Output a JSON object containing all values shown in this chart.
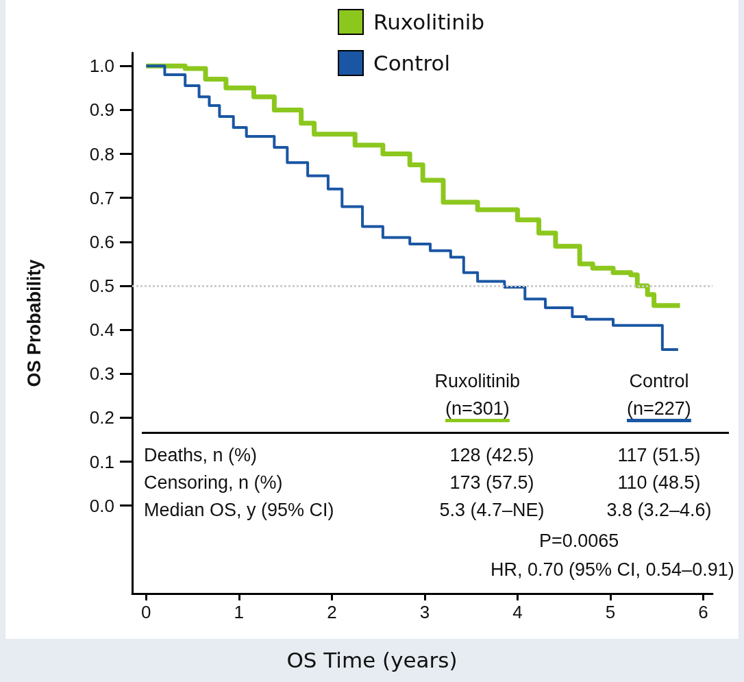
{
  "chart_data": {
    "type": "step",
    "xlabel": "OS Time (years)",
    "ylabel": "OS Probability",
    "xlim": [
      -0.15,
      6.1
    ],
    "xticks": [
      0,
      1,
      2,
      3,
      4,
      5,
      6
    ],
    "ylim": [
      -0.2,
      1.03
    ],
    "yticks": [
      {
        "value": 0,
        "label": "0.0"
      },
      0.1,
      0.2,
      0.3,
      0.4,
      0.5,
      0.6,
      0.7,
      0.8,
      0.9,
      {
        "value": 1,
        "label": "1.0"
      }
    ],
    "grid": false,
    "legend": "top",
    "marker": "none",
    "line_style": "solid",
    "series": [
      {
        "name": "Ruxolitinib",
        "color": "#8cc71e",
        "x": [
          0,
          0.42,
          0.64,
          0.86,
          1.16,
          1.38,
          1.67,
          1.81,
          2.25,
          2.55,
          2.84,
          2.98,
          3.2,
          3.57,
          4.0,
          4.23,
          4.41,
          4.67,
          4.81,
          5.03,
          5.22,
          5.29,
          5.4,
          5.47,
          5.75
        ],
        "values": [
          1.0,
          0.994,
          0.97,
          0.95,
          0.93,
          0.9,
          0.87,
          0.845,
          0.82,
          0.8,
          0.775,
          0.74,
          0.69,
          0.673,
          0.65,
          0.62,
          0.59,
          0.55,
          0.54,
          0.53,
          0.525,
          0.5,
          0.48,
          0.455,
          0.455
        ]
      },
      {
        "name": "Control",
        "color": "#1a56a3",
        "x": [
          0,
          0.2,
          0.42,
          0.57,
          0.68,
          0.79,
          0.94,
          1.08,
          1.38,
          1.52,
          1.74,
          1.96,
          2.11,
          2.33,
          2.55,
          2.84,
          3.06,
          3.28,
          3.42,
          3.57,
          3.86,
          4.08,
          4.3,
          4.59,
          4.74,
          5.03,
          5.54,
          5.56,
          5.73
        ],
        "values": [
          1.0,
          0.98,
          0.955,
          0.93,
          0.91,
          0.885,
          0.86,
          0.84,
          0.815,
          0.78,
          0.75,
          0.72,
          0.68,
          0.635,
          0.61,
          0.595,
          0.58,
          0.565,
          0.53,
          0.51,
          0.497,
          0.47,
          0.45,
          0.43,
          0.424,
          0.41,
          0.41,
          0.355,
          0.355
        ]
      }
    ],
    "ref_lines": [
      {
        "axis": "y",
        "value": 0.5,
        "color": "#cccccc",
        "line_style": "dotted"
      }
    ],
    "annotations": [
      "Ruxolitinib",
      "(n=301)",
      "Control",
      "(n=227)",
      "Deaths, n (%)",
      "128 (42.5)",
      "117 (51.5)",
      "Censoring, n (%)",
      "173 (57.5)",
      "110 (48.5)",
      "Median OS, y (95% CI)",
      "5.3 (4.7–NE)",
      "3.8 (3.2–4.6)",
      "P=0.0065",
      "HR, 0.70 (95% CI, 0.54–0.91)"
    ]
  }
}
